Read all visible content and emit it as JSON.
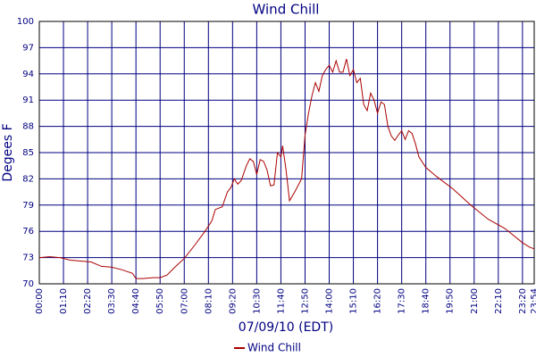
{
  "chart_data": {
    "type": "line",
    "title": "Wind Chill",
    "x_label": "07/09/10 (EDT)",
    "y_label": "Degees F",
    "xlim": [
      0,
      1434
    ],
    "ylim": [
      70,
      100
    ],
    "xticks": [
      {
        "value": 0,
        "label": "00:00"
      },
      {
        "value": 70,
        "label": "01:10"
      },
      {
        "value": 140,
        "label": "02:20"
      },
      {
        "value": 210,
        "label": "03:30"
      },
      {
        "value": 280,
        "label": "04:40"
      },
      {
        "value": 350,
        "label": "05:50"
      },
      {
        "value": 420,
        "label": "07:00"
      },
      {
        "value": 490,
        "label": "08:10"
      },
      {
        "value": 560,
        "label": "09:20"
      },
      {
        "value": 630,
        "label": "10:30"
      },
      {
        "value": 700,
        "label": "11:40"
      },
      {
        "value": 770,
        "label": "12:50"
      },
      {
        "value": 840,
        "label": "14:00"
      },
      {
        "value": 910,
        "label": "15:10"
      },
      {
        "value": 980,
        "label": "16:20"
      },
      {
        "value": 1050,
        "label": "17:30"
      },
      {
        "value": 1120,
        "label": "18:40"
      },
      {
        "value": 1190,
        "label": "19:50"
      },
      {
        "value": 1260,
        "label": "21:00"
      },
      {
        "value": 1330,
        "label": "22:10"
      },
      {
        "value": 1400,
        "label": "23:20"
      },
      {
        "value": 1434,
        "label": "23:54"
      }
    ],
    "yticks": [
      70,
      73,
      76,
      79,
      82,
      85,
      88,
      91,
      94,
      97,
      100
    ],
    "grid": true,
    "legend": "bottom",
    "x": [
      0,
      30,
      60,
      90,
      120,
      150,
      180,
      210,
      240,
      270,
      280,
      300,
      330,
      350,
      370,
      390,
      420,
      450,
      480,
      500,
      510,
      530,
      545,
      555,
      565,
      575,
      585,
      600,
      610,
      620,
      630,
      640,
      650,
      660,
      670,
      680,
      690,
      700,
      705,
      715,
      725,
      740,
      760,
      770,
      780,
      790,
      800,
      810,
      820,
      830,
      840,
      850,
      860,
      870,
      880,
      890,
      900,
      910,
      920,
      930,
      940,
      950,
      960,
      970,
      980,
      990,
      1000,
      1010,
      1020,
      1030,
      1040,
      1050,
      1060,
      1070,
      1080,
      1090,
      1100,
      1120,
      1150,
      1200,
      1250,
      1300,
      1350,
      1400,
      1420,
      1434
    ],
    "series": [
      {
        "name": "Wind Chill",
        "color": "#aa0000",
        "values": [
          73.0,
          73.1,
          73.0,
          72.7,
          72.6,
          72.5,
          72.0,
          71.9,
          71.6,
          71.2,
          70.6,
          70.6,
          70.7,
          70.7,
          71.0,
          71.8,
          72.9,
          74.4,
          76.0,
          77.2,
          78.5,
          78.8,
          80.5,
          81.0,
          82.0,
          81.4,
          81.8,
          83.5,
          84.3,
          84.0,
          82.5,
          84.2,
          84.0,
          83.0,
          81.2,
          81.3,
          85.0,
          84.5,
          85.8,
          83.0,
          79.5,
          80.5,
          82.0,
          87.0,
          89.5,
          91.5,
          93.0,
          92.0,
          93.8,
          94.5,
          95.0,
          94.2,
          95.5,
          94.2,
          94.2,
          95.7,
          93.8,
          94.5,
          93.0,
          93.5,
          90.5,
          89.8,
          91.8,
          91.0,
          89.5,
          90.8,
          90.5,
          88.0,
          86.9,
          86.4,
          87.0,
          87.5,
          86.5,
          87.5,
          87.2,
          86.0,
          84.5,
          83.3,
          82.3,
          80.8,
          79.0,
          77.4,
          76.3,
          74.7,
          74.2,
          74.0
        ]
      }
    ]
  }
}
